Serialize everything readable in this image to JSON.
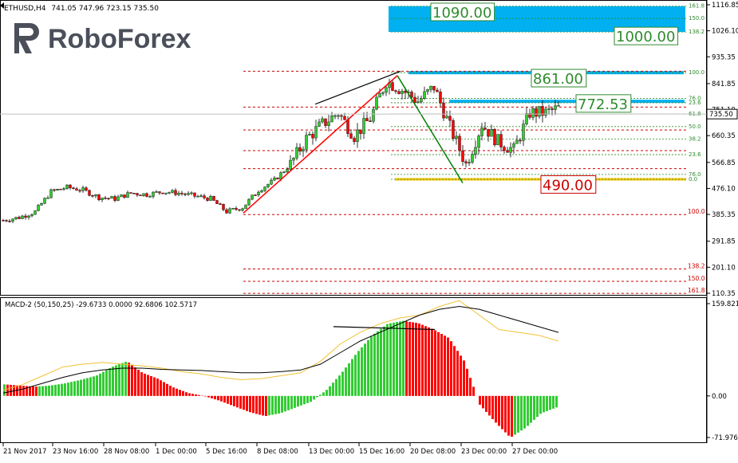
{
  "header": {
    "symbol": "ETHUSD,H4",
    "ohlc": "741.05 747.96 723.15 735.50"
  },
  "logo": {
    "text": "RoboForex"
  },
  "colors": {
    "bull": "#33cc33",
    "bear": "#ff0000",
    "fib": "#cc0000",
    "fib_green": "#2e8b2e",
    "cyan_zone": "#00b0f0",
    "gold": "#f5c400",
    "macd_signal": "#f1c232",
    "macd_line": "#000000",
    "grid": "#000000"
  },
  "price_axis": {
    "ticks": [
      "1116.85",
      "1026.10",
      "935.35",
      "841.85",
      "751.10",
      "660.35",
      "566.85",
      "476.10",
      "385.35",
      "291.85",
      "201.10",
      "110.35"
    ],
    "tick_values": [
      1116.85,
      1026.1,
      935.35,
      841.85,
      751.1,
      660.35,
      566.85,
      476.1,
      385.35,
      291.85,
      201.1,
      110.35
    ],
    "current": "735.50",
    "current_value": 735.5
  },
  "macd": {
    "label": "MACD-2 (50,150,25) -29.6733 0.0000 92.6806 102.5717",
    "ticks": [
      "159.821",
      "0.00",
      "-71.976"
    ],
    "tick_values": [
      159.821,
      0,
      -71.976
    ]
  },
  "time_axis": {
    "labels": [
      "21 Nov 2017",
      "23 Nov 16:00",
      "28 Nov 08:00",
      "1 Dec 00:00",
      "5 Dec 16:00",
      "8 Dec 08:00",
      "13 Dec 00:00",
      "15 Dec 16:00",
      "20 Dec 08:00",
      "23 Dec 00:00",
      "27 Dec 00:00"
    ]
  },
  "fib_left": {
    "levels": [
      {
        "label": "100.0",
        "price": 385
      },
      {
        "label": "138.2",
        "price": 195
      },
      {
        "label": "150.0",
        "price": 152
      },
      {
        "label": "161.8",
        "price": 110
      }
    ],
    "extra_prices": [
      545,
      608,
      680,
      760,
      885
    ]
  },
  "fib_right": {
    "levels": [
      {
        "label": "161.8",
        "price": 1112
      },
      {
        "label": "150.0",
        "price": 1069
      },
      {
        "label": "138.2",
        "price": 1022
      },
      {
        "label": "100.0",
        "price": 880
      },
      {
        "label": "76.0",
        "price": 790
      },
      {
        "label": "23.6",
        "price": 775
      },
      {
        "label": "61.8",
        "price": 736
      },
      {
        "label": "50.0",
        "price": 692
      },
      {
        "label": "38.2",
        "price": 648
      },
      {
        "label": "23.6",
        "price": 594
      },
      {
        "label": "76.0",
        "price": 525
      },
      {
        "label": "0.0",
        "price": 508
      }
    ]
  },
  "annotations": [
    {
      "text": "1090.00",
      "price": 1092,
      "color": "#2e8b2e"
    },
    {
      "text": "1000.00",
      "price": 1008,
      "color": "#2e8b2e"
    },
    {
      "text": "861.00",
      "price": 861,
      "color": "#2e8b2e"
    },
    {
      "text": "772.53",
      "price": 772.5,
      "color": "#2e8b2e"
    },
    {
      "text": "490.00",
      "price": 490,
      "color": "#cc0000"
    }
  ],
  "chart_data": {
    "type": "line",
    "title": "ETHUSD,H4",
    "price_range": [
      110.35,
      1116.85
    ],
    "close_path": {
      "x_bars": [
        0,
        20,
        40,
        60,
        80,
        100,
        120,
        140,
        160,
        180,
        200,
        220,
        240,
        260,
        280,
        300,
        320,
        340,
        360,
        380,
        400,
        420,
        440,
        460,
        480,
        500,
        520,
        540,
        560,
        580,
        600,
        620,
        640,
        660,
        680,
        700
      ],
      "price": [
        365,
        375,
        395,
        465,
        480,
        470,
        445,
        440,
        460,
        455,
        465,
        460,
        450,
        440,
        395,
        410,
        470,
        505,
        560,
        650,
        700,
        740,
        660,
        720,
        850,
        820,
        780,
        830,
        690,
        560,
        700,
        640,
        610,
        740,
        740,
        760
      ]
    },
    "impulse_up": {
      "from": [
        305,
        390
      ],
      "to": [
        498,
        870
      ]
    },
    "impulse_down": {
      "from": [
        498,
        870
      ],
      "to": [
        580,
        495
      ]
    },
    "trendline_top": {
      "from": [
        395,
        770
      ],
      "to": [
        502,
        885
      ]
    },
    "macd_hist": [
      20,
      18,
      16,
      18,
      22,
      28,
      35,
      50,
      60,
      40,
      30,
      15,
      5,
      0,
      -8,
      -18,
      -28,
      -35,
      -30,
      -20,
      -10,
      10,
      40,
      75,
      105,
      125,
      130,
      126,
      115,
      100,
      60,
      -15,
      -45,
      -72,
      -55,
      -30,
      -20
    ],
    "macd_signal_series": [
      10,
      20,
      35,
      50,
      55,
      58,
      55,
      52,
      48,
      42,
      38,
      32,
      28,
      30,
      35,
      40,
      60,
      90,
      110,
      125,
      135,
      140,
      155,
      165,
      140,
      115,
      110,
      105,
      95
    ],
    "macd_line_series": [
      5,
      12,
      22,
      32,
      40,
      45,
      48,
      48,
      46,
      45,
      44,
      42,
      40,
      40,
      42,
      45,
      55,
      75,
      95,
      110,
      125,
      140,
      150,
      155,
      150,
      140,
      130,
      120,
      110
    ]
  }
}
